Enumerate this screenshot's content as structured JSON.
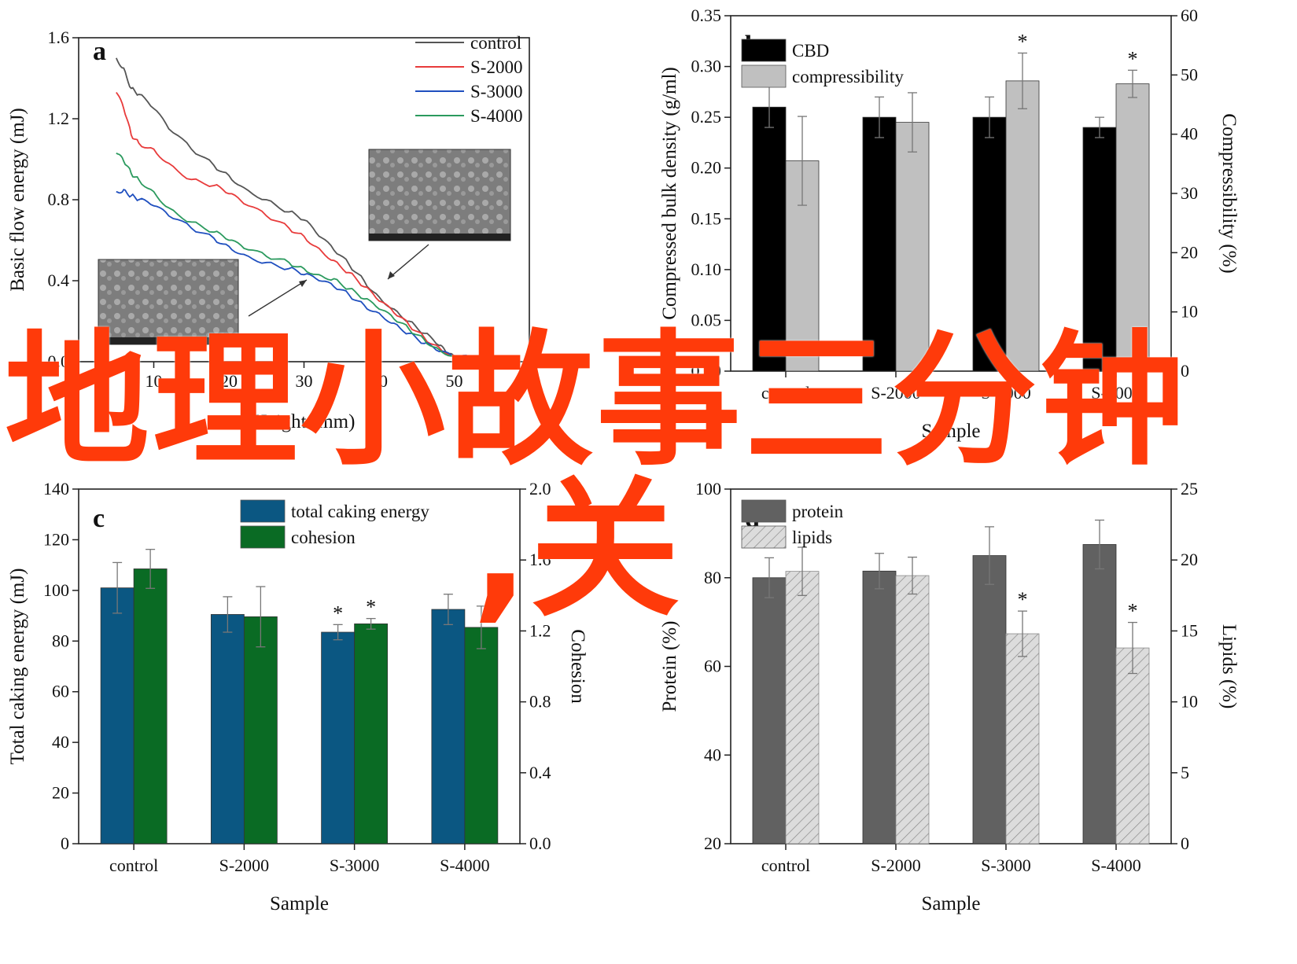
{
  "overlay": {
    "line1": "地理小故事三分钟",
    "line2": ",关"
  },
  "colors": {
    "control": "#555555",
    "s2000": "#e83b3b",
    "s3000": "#1f4fbf",
    "s4000": "#2b9a5e",
    "cbd": "#000000",
    "compressibility": "#c0c0c0",
    "caking": "#0b5782",
    "cohesion": "#0a6b24",
    "protein": "#616161",
    "lipids": "#dcdcdc",
    "overlay": "#ff3a0a"
  },
  "chart_data": [
    {
      "id": "a",
      "type": "line",
      "panel_label": "a",
      "xlabel": "Height (mm)",
      "ylabel": "Basic flow energy (mJ)",
      "xlim": [
        0,
        60
      ],
      "ylim": [
        0,
        1.6
      ],
      "xticks": [
        0,
        10,
        20,
        30,
        40,
        50,
        60
      ],
      "xtick_labels": [
        "0",
        "10",
        "20",
        "30",
        "40",
        "50",
        "60"
      ],
      "yticks": [
        0,
        0.4,
        0.8,
        1.2,
        1.6
      ],
      "ytick_labels": [
        "0.0",
        "0.4",
        "0.8",
        "1.2",
        "1.6"
      ],
      "legend": "top-right",
      "series": [
        {
          "name": "control",
          "color": "#555555",
          "x": [
            5,
            6,
            7,
            8,
            10,
            12,
            15,
            18,
            20,
            22,
            25,
            28,
            30,
            32,
            34,
            36,
            38,
            40,
            42,
            44,
            46,
            48,
            49,
            50,
            52,
            54
          ],
          "y": [
            1.5,
            1.45,
            1.35,
            1.32,
            1.25,
            1.15,
            1.05,
            0.97,
            0.92,
            0.86,
            0.8,
            0.74,
            0.7,
            0.62,
            0.55,
            0.48,
            0.4,
            0.32,
            0.26,
            0.2,
            0.14,
            0.08,
            0.04,
            0.02,
            0.02,
            0.02
          ]
        },
        {
          "name": "S-2000",
          "color": "#e83b3b",
          "x": [
            5,
            6,
            7,
            8,
            10,
            12,
            15,
            18,
            20,
            22,
            25,
            28,
            30,
            32,
            34,
            36,
            38,
            40,
            42,
            44,
            46,
            48,
            50,
            52,
            54
          ],
          "y": [
            1.33,
            1.25,
            1.12,
            1.08,
            1.05,
            0.98,
            0.9,
            0.87,
            0.83,
            0.78,
            0.72,
            0.66,
            0.62,
            0.56,
            0.5,
            0.44,
            0.37,
            0.3,
            0.24,
            0.18,
            0.12,
            0.07,
            0.03,
            0.02,
            0.02
          ]
        },
        {
          "name": "S-3000",
          "color": "#1f4fbf",
          "x": [
            5,
            6,
            7,
            8,
            10,
            12,
            15,
            18,
            20,
            22,
            25,
            28,
            30,
            32,
            34,
            36,
            38,
            40,
            42,
            44,
            46,
            48,
            50,
            52,
            54
          ],
          "y": [
            0.84,
            0.85,
            0.82,
            0.8,
            0.77,
            0.72,
            0.66,
            0.61,
            0.57,
            0.53,
            0.49,
            0.46,
            0.43,
            0.4,
            0.37,
            0.33,
            0.28,
            0.24,
            0.19,
            0.14,
            0.09,
            0.05,
            0.02,
            0.02,
            0.02
          ]
        },
        {
          "name": "S-4000",
          "color": "#2b9a5e",
          "x": [
            5,
            6,
            7,
            8,
            10,
            12,
            15,
            18,
            20,
            22,
            25,
            28,
            30,
            32,
            34,
            36,
            38,
            40,
            42,
            44,
            46,
            48,
            50,
            52,
            54
          ],
          "y": [
            1.03,
            0.99,
            0.93,
            0.9,
            0.84,
            0.76,
            0.69,
            0.64,
            0.6,
            0.56,
            0.52,
            0.49,
            0.46,
            0.43,
            0.41,
            0.36,
            0.31,
            0.26,
            0.21,
            0.16,
            0.11,
            0.06,
            0.03,
            0.02,
            0.02
          ]
        }
      ],
      "insets": [
        {
          "name": "sem-image-left",
          "caption": "SEM image"
        },
        {
          "name": "sem-image-right",
          "caption": "SEM image"
        }
      ]
    },
    {
      "id": "b",
      "type": "bar",
      "panel_label": "b",
      "categories": [
        "control",
        "S-2000",
        "S-3000",
        "S-4000"
      ],
      "xlabel": "Sample",
      "ylabel": "Compressed bulk density (g/ml)",
      "ylabel_right": "Compressibility (%)",
      "ylim": [
        0,
        0.35
      ],
      "ylim_right": [
        0,
        60
      ],
      "yticks": [
        0,
        0.05,
        0.1,
        0.15,
        0.2,
        0.25,
        0.3,
        0.35
      ],
      "ytick_labels": [
        "0.00",
        "0.05",
        "0.10",
        "0.15",
        "0.20",
        "0.25",
        "0.30",
        "0.35"
      ],
      "yticks_right": [
        0,
        10,
        20,
        30,
        40,
        50,
        60
      ],
      "ytick_labels_right": [
        "0",
        "10",
        "20",
        "30",
        "40",
        "50",
        "60"
      ],
      "legend": "top-left",
      "series": [
        {
          "name": "CBD",
          "axis": "left",
          "color": "#000000",
          "values": [
            0.26,
            0.25,
            0.25,
            0.24
          ],
          "errors": [
            0.02,
            0.02,
            0.02,
            0.01
          ],
          "stars": [
            false,
            false,
            false,
            false
          ]
        },
        {
          "name": "compressibility",
          "axis": "right",
          "color": "#c0c0c0",
          "values": [
            35.5,
            42.0,
            49.0,
            48.5
          ],
          "errors": [
            7.5,
            5.0,
            4.7,
            2.3
          ],
          "stars": [
            false,
            false,
            true,
            true
          ]
        }
      ]
    },
    {
      "id": "c",
      "type": "bar",
      "panel_label": "c",
      "categories": [
        "control",
        "S-2000",
        "S-3000",
        "S-4000"
      ],
      "xlabel": "Sample",
      "ylabel": "Total caking energy (mJ)",
      "ylabel_right": "Cohesion",
      "ylim": [
        0,
        140
      ],
      "ylim_right": [
        0,
        2.0
      ],
      "yticks": [
        0,
        20,
        40,
        60,
        80,
        100,
        120,
        140
      ],
      "ytick_labels": [
        "0",
        "20",
        "40",
        "60",
        "80",
        "100",
        "120",
        "140"
      ],
      "yticks_right": [
        0,
        0.4,
        0.8,
        1.2,
        1.6,
        2.0
      ],
      "ytick_labels_right": [
        "0.0",
        "0.4",
        "0.8",
        "1.2",
        "1.6",
        "2.0"
      ],
      "legend": "top-center",
      "series": [
        {
          "name": "total caking energy",
          "axis": "left",
          "color": "#0b5782",
          "values": [
            101,
            90.5,
            83.5,
            92.5
          ],
          "errors": [
            10,
            7,
            3,
            6
          ],
          "stars": [
            false,
            false,
            true,
            false
          ]
        },
        {
          "name": "cohesion",
          "axis": "right",
          "color": "#0a6b24",
          "values": [
            1.55,
            1.28,
            1.24,
            1.22
          ],
          "errors": [
            0.11,
            0.17,
            0.03,
            0.12
          ],
          "stars": [
            false,
            false,
            true,
            false
          ]
        }
      ]
    },
    {
      "id": "d",
      "type": "bar",
      "panel_label": "d",
      "categories": [
        "control",
        "S-2000",
        "S-3000",
        "S-4000"
      ],
      "xlabel": "Sample",
      "ylabel": "Protein (%)",
      "ylabel_right": "Lipids (%)",
      "ylim": [
        20,
        100
      ],
      "ylim_right": [
        0,
        25
      ],
      "yticks": [
        20,
        40,
        60,
        80,
        100
      ],
      "ytick_labels": [
        "20",
        "40",
        "60",
        "80",
        "100"
      ],
      "yticks_right": [
        0,
        5,
        10,
        15,
        20,
        25
      ],
      "ytick_labels_right": [
        "0",
        "5",
        "10",
        "15",
        "20",
        "25"
      ],
      "legend": "top-left",
      "series": [
        {
          "name": "protein",
          "axis": "left",
          "color": "#616161",
          "values": [
            80,
            81.5,
            85,
            87.5
          ],
          "errors": [
            4.5,
            4,
            6.5,
            5.5
          ],
          "stars": [
            false,
            false,
            false,
            false
          ]
        },
        {
          "name": "lipids",
          "axis": "right",
          "color": "#dcdcdc",
          "hatch": true,
          "values": [
            19.2,
            18.9,
            14.8,
            13.8
          ],
          "errors": [
            1.7,
            1.3,
            1.6,
            1.8
          ],
          "stars": [
            false,
            false,
            true,
            true
          ]
        }
      ]
    }
  ]
}
